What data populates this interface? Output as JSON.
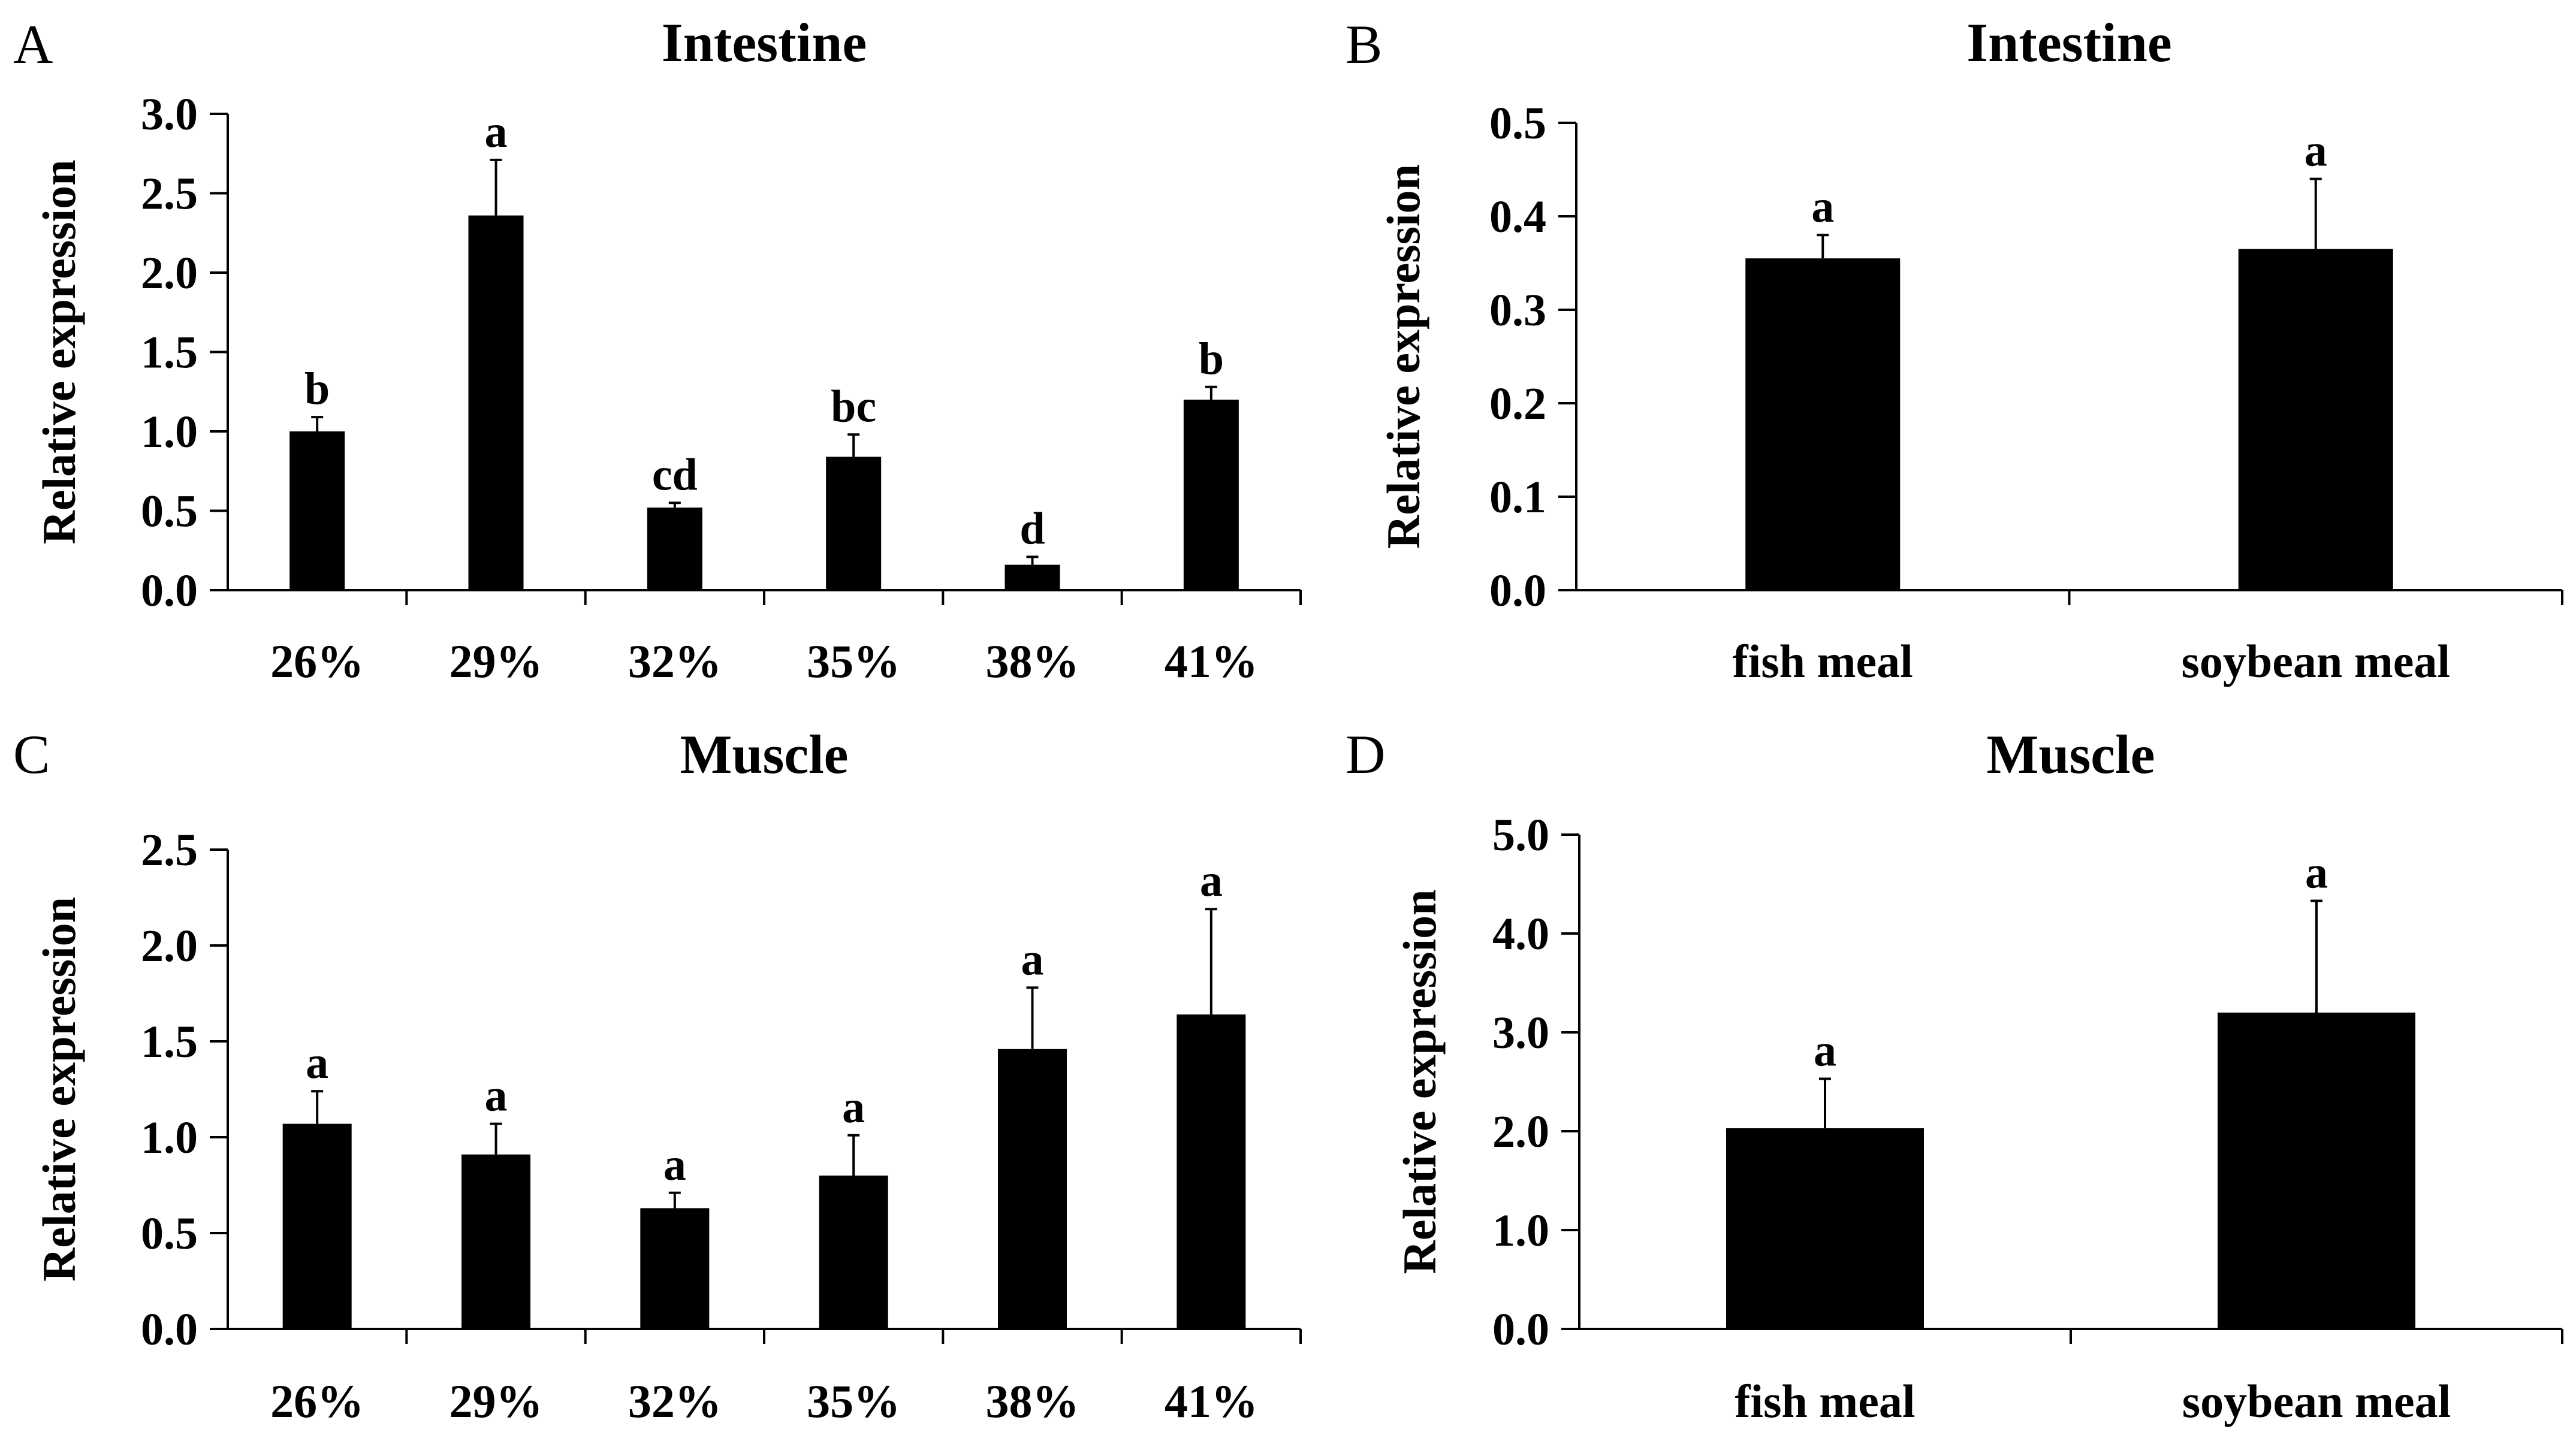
{
  "chart_data": [
    {
      "panel": "A",
      "type": "bar",
      "title": "Intestine",
      "xlabel": "",
      "ylabel": "Relative expression",
      "categories": [
        "26%",
        "29%",
        "32%",
        "35%",
        "38%",
        "41%"
      ],
      "values": [
        1.0,
        2.36,
        0.52,
        0.84,
        0.16,
        1.2
      ],
      "errors": [
        0.09,
        0.35,
        0.03,
        0.14,
        0.05,
        0.08
      ],
      "labels": [
        "b",
        "a",
        "cd",
        "bc",
        "d",
        "b"
      ],
      "ylim": [
        0,
        3.0
      ],
      "yticks": [
        "0.0",
        "0.5",
        "1.0",
        "1.5",
        "2.0",
        "2.5",
        "3.0"
      ],
      "grid": false
    },
    {
      "panel": "B",
      "type": "bar",
      "title": "Intestine",
      "xlabel": "",
      "ylabel": "Relative expression",
      "categories": [
        "fish meal",
        "soybean meal"
      ],
      "values": [
        0.355,
        0.365
      ],
      "errors": [
        0.025,
        0.075
      ],
      "labels": [
        "a",
        "a"
      ],
      "ylim": [
        0,
        0.5
      ],
      "yticks": [
        "0.0",
        "0.1",
        "0.2",
        "0.3",
        "0.4",
        "0.5"
      ],
      "grid": false
    },
    {
      "panel": "C",
      "type": "bar",
      "title": "Muscle",
      "xlabel": "",
      "ylabel": "Relative expression",
      "categories": [
        "26%",
        "29%",
        "32%",
        "35%",
        "38%",
        "41%"
      ],
      "values": [
        1.07,
        0.91,
        0.63,
        0.8,
        1.46,
        1.64
      ],
      "errors": [
        0.17,
        0.16,
        0.08,
        0.21,
        0.32,
        0.55
      ],
      "labels": [
        "a",
        "a",
        "a",
        "a",
        "a",
        "a"
      ],
      "ylim": [
        0,
        2.5
      ],
      "yticks": [
        "0.0",
        "0.5",
        "1.0",
        "1.5",
        "2.0",
        "2.5"
      ],
      "grid": false
    },
    {
      "panel": "D",
      "type": "bar",
      "title": "Muscle",
      "xlabel": "",
      "ylabel": "Relative expression",
      "categories": [
        "fish meal",
        "soybean meal"
      ],
      "values": [
        2.03,
        3.2
      ],
      "errors": [
        0.5,
        1.13
      ],
      "labels": [
        "a",
        "a"
      ],
      "ylim": [
        0,
        5.0
      ],
      "yticks": [
        "0.0",
        "1.0",
        "2.0",
        "3.0",
        "4.0",
        "5.0"
      ],
      "grid": false
    }
  ]
}
